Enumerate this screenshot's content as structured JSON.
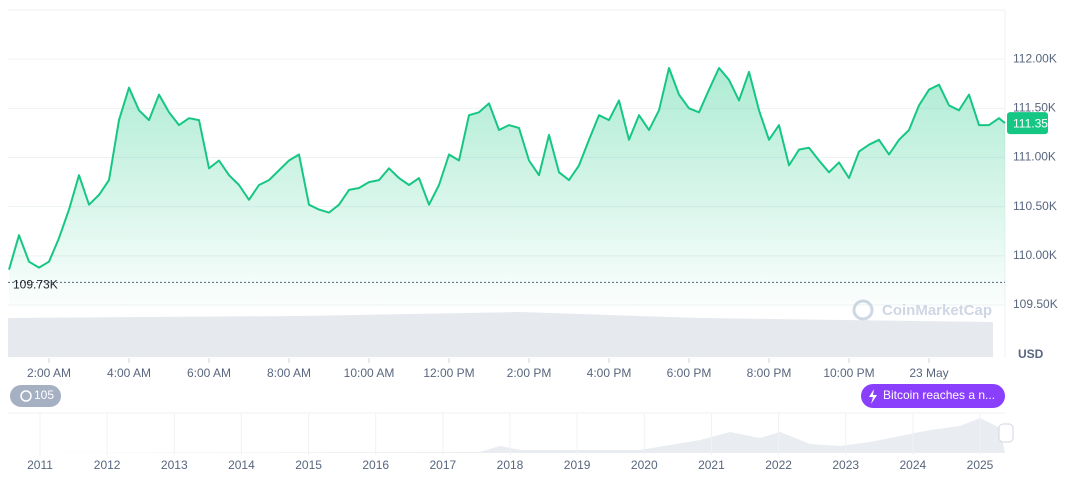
{
  "chart_data": {
    "type": "line",
    "color": "#16c784",
    "x": [
      1.0,
      1.25,
      1.5,
      1.75,
      2.0,
      2.25,
      2.5,
      2.75,
      3.0,
      3.25,
      3.5,
      3.75,
      4.0,
      4.25,
      4.5,
      4.75,
      5.0,
      5.25,
      5.5,
      5.75,
      6.0,
      6.25,
      6.5,
      6.75,
      7.0,
      7.25,
      7.5,
      7.75,
      8.0,
      8.25,
      8.5,
      8.75,
      9.0,
      9.25,
      9.5,
      9.75,
      10.0,
      10.25,
      10.5,
      10.75,
      11.0,
      11.25,
      11.5,
      11.75,
      12.0,
      12.25,
      12.5,
      12.75,
      13.0,
      13.25,
      13.5,
      13.75,
      14.0,
      14.25,
      14.5,
      14.75,
      15.0,
      15.25,
      15.5,
      15.75,
      16.0,
      16.25,
      16.5,
      16.75,
      17.0,
      17.25,
      17.5,
      17.75,
      18.0,
      18.25,
      18.5,
      18.75,
      19.0,
      19.25,
      19.5,
      19.75,
      20.0,
      20.25,
      20.5,
      20.75,
      21.0,
      21.25,
      21.5,
      21.75,
      22.0,
      22.25,
      22.5,
      22.75,
      23.0,
      23.25,
      23.5,
      23.75,
      24.0,
      24.25,
      24.5,
      24.75,
      25.0,
      25.25,
      25.5,
      25.75,
      25.9
    ],
    "values": [
      109.86,
      110.21,
      109.94,
      109.88,
      109.94,
      110.18,
      110.47,
      110.82,
      110.52,
      110.62,
      110.77,
      111.38,
      111.71,
      111.48,
      111.38,
      111.64,
      111.46,
      111.33,
      111.4,
      111.38,
      110.89,
      110.97,
      110.82,
      110.72,
      110.57,
      110.72,
      110.77,
      110.87,
      110.97,
      111.03,
      110.52,
      110.47,
      110.44,
      110.52,
      110.67,
      110.69,
      110.75,
      110.77,
      110.89,
      110.79,
      110.72,
      110.79,
      110.52,
      110.72,
      111.03,
      110.97,
      111.43,
      111.46,
      111.55,
      111.28,
      111.33,
      111.3,
      110.97,
      110.82,
      111.23,
      110.85,
      110.77,
      110.92,
      111.18,
      111.43,
      111.38,
      111.58,
      111.18,
      111.43,
      111.28,
      111.48,
      111.91,
      111.64,
      111.5,
      111.46,
      111.69,
      111.91,
      111.79,
      111.58,
      111.87,
      111.48,
      111.18,
      111.33,
      110.92,
      111.08,
      111.1,
      110.97,
      110.85,
      110.95,
      110.79,
      111.06,
      111.13,
      111.18,
      111.03,
      111.18,
      111.28,
      111.53,
      111.69,
      111.74,
      111.53,
      111.48,
      111.64,
      111.33,
      111.33,
      111.4,
      111.35
    ],
    "xlim": [
      0.975,
      25.9
    ],
    "xticks": [
      {
        "value": 2,
        "label": "2:00 AM"
      },
      {
        "value": 4,
        "label": "4:00 AM"
      },
      {
        "value": 6,
        "label": "6:00 AM"
      },
      {
        "value": 8,
        "label": "8:00 AM"
      },
      {
        "value": 10,
        "label": "10:00 AM"
      },
      {
        "value": 12,
        "label": "12:00 PM"
      },
      {
        "value": 14,
        "label": "2:00 PM"
      },
      {
        "value": 16,
        "label": "4:00 PM"
      },
      {
        "value": 18,
        "label": "6:00 PM"
      },
      {
        "value": 20,
        "label": "8:00 PM"
      },
      {
        "value": 22,
        "label": "10:00 PM"
      },
      {
        "value": 24,
        "label": "23 May"
      }
    ],
    "ylim": [
      109.5,
      112.5
    ],
    "yticks": [
      {
        "value": 109.5,
        "label": "109.50K"
      },
      {
        "value": 110,
        "label": "110.00K"
      },
      {
        "value": 110.5,
        "label": "110.50K"
      },
      {
        "value": 111,
        "label": "111.00K"
      },
      {
        "value": 111.5,
        "label": "111.50K"
      },
      {
        "value": 112,
        "label": "112.00K"
      }
    ],
    "grid": true,
    "last_price": {
      "value": 111.35,
      "label": "111.35K"
    },
    "low": {
      "value": 109.73,
      "label": "109.73K"
    },
    "currency": "USD",
    "watermark": "CoinMarketCap",
    "history_badge": "105",
    "event_badge": "Bitcoin reaches a n...",
    "navigator_years": [
      "2011",
      "2012",
      "2013",
      "2014",
      "2015",
      "2016",
      "2017",
      "2018",
      "2019",
      "2020",
      "2021",
      "2022",
      "2023",
      "2024",
      "2025"
    ]
  }
}
